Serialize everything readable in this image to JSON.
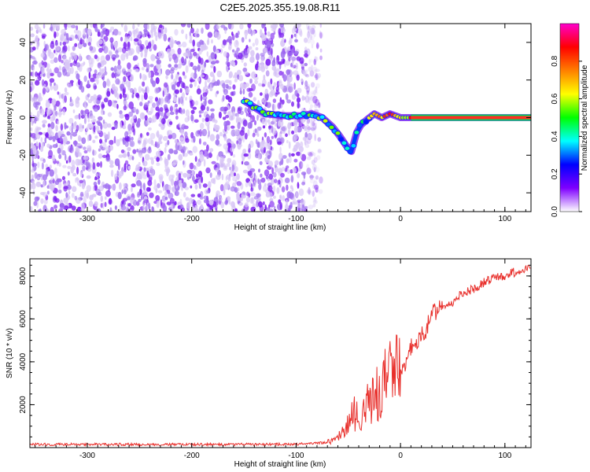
{
  "title": "C2E5.2025.355.19.08.R11",
  "chart_data": [
    {
      "type": "heatmap",
      "name": "spectrogram",
      "xlabel": "Height of straight line (km)",
      "ylabel": "Frequency (Hz)",
      "xlim": [
        -355,
        125
      ],
      "ylim": [
        -50,
        50
      ],
      "xticks": [
        -300,
        -200,
        -100,
        0,
        100
      ],
      "xtick_labels": [
        "-300",
        "-200",
        "-100",
        "0",
        "100"
      ],
      "yticks": [
        -40,
        -20,
        0,
        20,
        40
      ],
      "ytick_labels": [
        "-40",
        "-20",
        "0",
        "20",
        "40"
      ],
      "noise_region_x": [
        -355,
        -90
      ],
      "signal_track": {
        "x": [
          -150,
          -130,
          -110,
          -95,
          -85,
          -75,
          -65,
          -58,
          -52,
          -47,
          -42,
          -38,
          -32,
          -25,
          -18,
          -10,
          -5,
          0,
          10,
          40,
          80,
          125
        ],
        "y": [
          9,
          2,
          1,
          1,
          2,
          0,
          -5,
          -10,
          -15,
          -18,
          -8,
          -4,
          -1,
          2,
          0,
          2,
          1,
          0,
          0,
          0,
          0,
          0
        ]
      },
      "colorbar": {
        "label": "Normalized spectral amplitude",
        "range": [
          0,
          1
        ],
        "ticks": [
          0.0,
          0.2,
          0.4,
          0.6,
          0.8
        ],
        "tick_labels": [
          "0.0",
          "0.2",
          "0.4",
          "0.6",
          "0.8"
        ],
        "colors": [
          "#ffffff",
          "#7f00ff",
          "#0000ff",
          "#00ffff",
          "#00ff00",
          "#ffff00",
          "#ff7f00",
          "#ff0000",
          "#ff00cc"
        ]
      }
    },
    {
      "type": "line",
      "name": "snr",
      "xlabel": "Height of straight line (km)",
      "ylabel": "SNR (10 * v/v)",
      "xlim": [
        -355,
        125
      ],
      "ylim": [
        0,
        8800
      ],
      "xticks": [
        -300,
        -200,
        -100,
        0,
        100
      ],
      "xtick_labels": [
        "-300",
        "-200",
        "-100",
        "0",
        "100"
      ],
      "yticks": [
        2000,
        4000,
        6000,
        8000
      ],
      "ytick_labels": [
        "2000",
        "4000",
        "6000",
        "8000"
      ],
      "color": "#e8302c",
      "series": [
        {
          "name": "SNR",
          "x": [
            -355,
            -300,
            -250,
            -200,
            -150,
            -100,
            -80,
            -70,
            -60,
            -55,
            -50,
            -45,
            -40,
            -35,
            -30,
            -25,
            -20,
            -15,
            -10,
            -5,
            0,
            5,
            10,
            15,
            20,
            25,
            30,
            40,
            50,
            60,
            70,
            80,
            90,
            100,
            110,
            120,
            125
          ],
          "y": [
            150,
            150,
            150,
            150,
            150,
            160,
            200,
            250,
            400,
            800,
            1000,
            1700,
            1300,
            1900,
            2100,
            2300,
            2600,
            3100,
            3300,
            3500,
            3600,
            3800,
            4700,
            4900,
            5200,
            5500,
            6300,
            6600,
            6800,
            7200,
            7400,
            7700,
            7900,
            8000,
            8200,
            8300,
            8550
          ]
        }
      ]
    }
  ]
}
